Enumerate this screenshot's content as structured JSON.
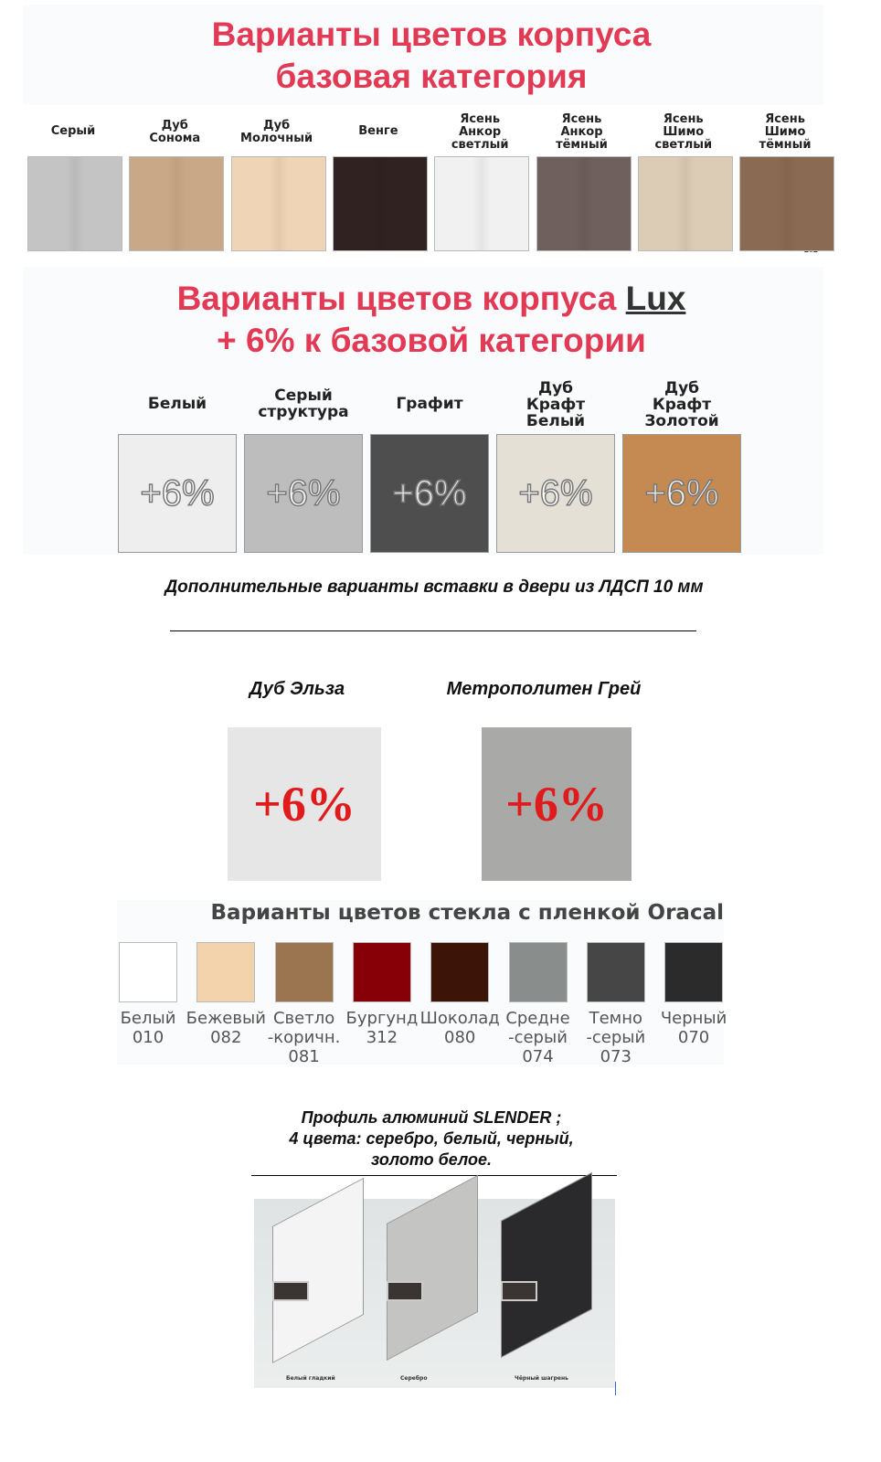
{
  "base": {
    "title_line1": "Варианты цветов корпуса",
    "title_line2": "базовая категория",
    "swatches": [
      {
        "label": "Серый",
        "color": "#c4c4c4"
      },
      {
        "label": "Дуб Сонома",
        "color": "#c9a888"
      },
      {
        "label": "Дуб Молочный",
        "color": "#f0d4b6"
      },
      {
        "label": "Венге",
        "color": "#2f2220"
      },
      {
        "label": "Ясень Анкор светлый",
        "color": "#f1f1f1"
      },
      {
        "label": "Ясень Анкор тёмный",
        "color": "#6f5f5d"
      },
      {
        "label": "Ясень Шимо светлый",
        "color": "#dccbb5"
      },
      {
        "label": "Ясень Шимо тёмный",
        "color": "#8a6a52"
      }
    ],
    "year_mark": "202"
  },
  "lux": {
    "title_line1": "Варианты цветов корпуса",
    "title_lux": "Lux",
    "title_line2": "+ 6% к базовой категории",
    "swatches": [
      {
        "label": "Белый",
        "color": "#eeeeee",
        "badge": "+6%"
      },
      {
        "label": "Серый структура",
        "color": "#bdbdbd",
        "badge": "+6%"
      },
      {
        "label": "Графит",
        "color": "#4e4e4e",
        "badge": "+6%"
      },
      {
        "label": "Дуб Крафт Белый",
        "color": "#e4e0d6",
        "badge": "+6%"
      },
      {
        "label": "Дуб Крафт Золотой",
        "color": "#c48a52",
        "badge": "+6%"
      }
    ]
  },
  "inserts": {
    "heading": "Дополнительные варианты вставки в двери из ЛДСП 10 мм",
    "items": [
      {
        "label": "Дуб Эльза",
        "color": "#e6e6e6",
        "badge": "+6%"
      },
      {
        "label": "Метрополитен Грей",
        "color": "#a9a9a7",
        "badge": "+6%"
      }
    ]
  },
  "glass": {
    "title": "Варианты цветов стекла с пленкой Oracal",
    "swatches": [
      {
        "name": "Белый",
        "code": "010",
        "color": "#ffffff"
      },
      {
        "name": "Бежевый",
        "code": "082",
        "color": "#f2d3ab"
      },
      {
        "name": "Светло -коричн.",
        "code": "081",
        "color": "#9a7550"
      },
      {
        "name": "Бургунд",
        "code": "312",
        "color": "#870007"
      },
      {
        "name": "Шоколад",
        "code": "080",
        "color": "#3d1508"
      },
      {
        "name": "Средне -серый",
        "code": "074",
        "color": "#898d8c"
      },
      {
        "name": "Темно -серый",
        "code": "073",
        "color": "#464646"
      },
      {
        "name": "Черный",
        "code": "070",
        "color": "#2b2b2b"
      }
    ]
  },
  "profile": {
    "line1": "Профиль алюминий SLENDER ;",
    "line2": "4 цвета: серебро, белый, черный,",
    "line3": "золото белое.",
    "items": [
      {
        "label": "Белый гладкий",
        "color": "#f4f4f4"
      },
      {
        "label": "Серебро",
        "color": "#c4c4c2"
      },
      {
        "label": "Чёрный шагрень",
        "color": "#2a2a2c"
      }
    ]
  }
}
